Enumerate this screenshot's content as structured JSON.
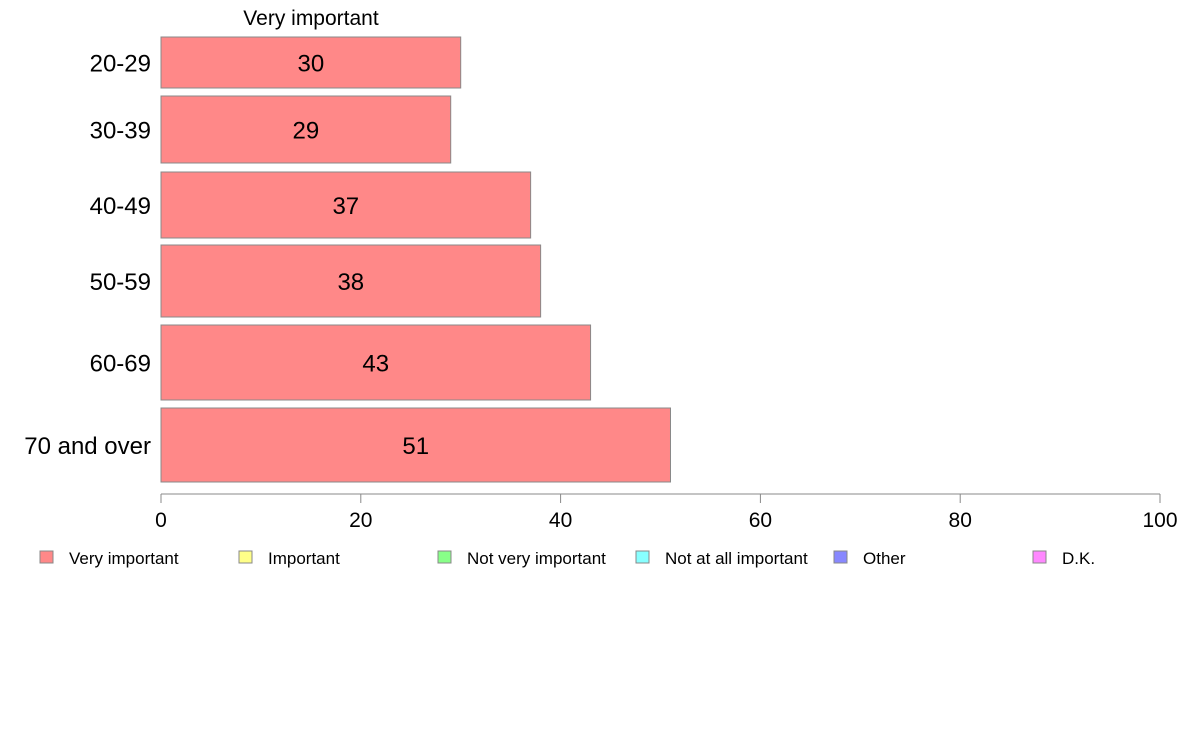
{
  "chart_data": {
    "type": "bar",
    "orientation": "horizontal",
    "title": "Very important",
    "categories": [
      "20-29",
      "30-39",
      "40-49",
      "50-59",
      "60-69",
      "70 and over"
    ],
    "series": [
      {
        "name": "Very important",
        "values": [
          30,
          29,
          37,
          38,
          43,
          51
        ],
        "color": "#ff8888"
      }
    ],
    "xlim": [
      0,
      100
    ],
    "xticks": [
      "0",
      "20",
      "40",
      "60",
      "80",
      "100"
    ],
    "grid": false,
    "legend_position": "bottom",
    "legend": [
      {
        "label": "Very important",
        "color": "#ff8888"
      },
      {
        "label": "Important",
        "color": "#ffff88"
      },
      {
        "label": "Not very important",
        "color": "#88ff88"
      },
      {
        "label": "Not at all important",
        "color": "#88ffff"
      },
      {
        "label": "Other",
        "color": "#8888ff"
      },
      {
        "label": "D.K.",
        "color": "#ff88ff"
      }
    ],
    "bar_outline_color": "#888888",
    "axis_color": "#888888"
  }
}
